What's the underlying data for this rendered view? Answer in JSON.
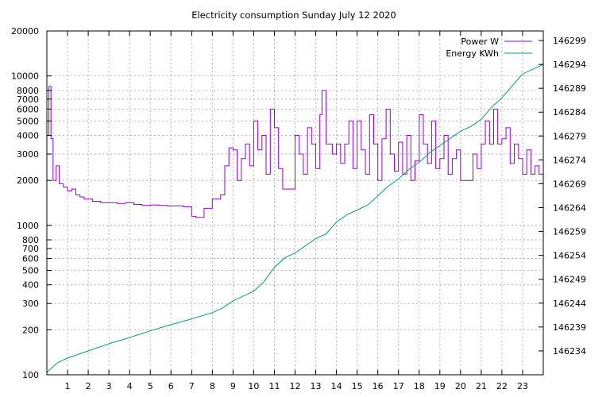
{
  "chart_data": {
    "type": "line",
    "title": "Electricity consumption Sunday July 12 2020",
    "xlabel": "",
    "ylabel": "",
    "y2label": "",
    "grid": true,
    "legend_position": "top-right",
    "x_range": [
      0,
      24
    ],
    "x_ticks": [
      1,
      2,
      3,
      4,
      5,
      6,
      7,
      8,
      9,
      10,
      11,
      12,
      13,
      14,
      15,
      16,
      17,
      18,
      19,
      20,
      21,
      22,
      23
    ],
    "y_scale": "log",
    "y_range": [
      100,
      20000
    ],
    "y_ticks": [
      100,
      200,
      300,
      400,
      500,
      600,
      700,
      800,
      1000,
      2000,
      3000,
      4000,
      5000,
      6000,
      7000,
      8000,
      10000,
      20000
    ],
    "y2_range": [
      146229,
      146301
    ],
    "y2_ticks": [
      146234,
      146239,
      146244,
      146249,
      146254,
      146259,
      146264,
      146269,
      146274,
      146279,
      146284,
      146289,
      146294,
      146299
    ],
    "series": [
      {
        "name": "Power W",
        "axis": "left",
        "color": "#9400d3",
        "step": true,
        "x": [
          0,
          0.1,
          0.2,
          0.3,
          0.45,
          0.6,
          0.8,
          1.0,
          1.2,
          1.4,
          1.6,
          1.8,
          2.2,
          2.6,
          3.0,
          3.4,
          3.8,
          4.2,
          4.6,
          5.0,
          5.4,
          5.8,
          6.2,
          6.6,
          7.0,
          7.2,
          7.6,
          8.0,
          8.4,
          8.6,
          8.8,
          9.0,
          9.2,
          9.4,
          9.6,
          9.8,
          10.0,
          10.2,
          10.4,
          10.6,
          10.8,
          11.0,
          11.2,
          11.4,
          11.6,
          11.8,
          12.0,
          12.2,
          12.4,
          12.6,
          12.8,
          13.0,
          13.2,
          13.3,
          13.5,
          13.8,
          14.0,
          14.2,
          14.4,
          14.6,
          14.8,
          15.0,
          15.2,
          15.4,
          15.6,
          15.8,
          16.0,
          16.2,
          16.4,
          16.6,
          16.8,
          17.0,
          17.2,
          17.4,
          17.6,
          17.8,
          18.0,
          18.2,
          18.4,
          18.6,
          18.8,
          19.0,
          19.2,
          19.4,
          19.6,
          19.8,
          20.0,
          20.2,
          20.4,
          20.6,
          20.8,
          21.0,
          21.2,
          21.4,
          21.6,
          21.8,
          22.0,
          22.2,
          22.4,
          22.6,
          22.8,
          23.0,
          23.2,
          23.4,
          23.6,
          23.8
        ],
        "values": [
          4000,
          8500,
          3800,
          2000,
          2500,
          1900,
          1800,
          1700,
          1750,
          1600,
          1550,
          1500,
          1450,
          1420,
          1420,
          1400,
          1420,
          1380,
          1360,
          1370,
          1360,
          1350,
          1350,
          1330,
          1150,
          1130,
          1300,
          1500,
          1600,
          2500,
          3300,
          3200,
          2000,
          2800,
          3500,
          2500,
          5000,
          3200,
          4000,
          2200,
          6000,
          4500,
          2400,
          1750,
          1750,
          1750,
          4000,
          3000,
          2200,
          4500,
          3500,
          2400,
          5500,
          8000,
          3500,
          3000,
          3500,
          2600,
          3500,
          5000,
          2400,
          5000,
          3200,
          2200,
          5500,
          3500,
          2000,
          3800,
          6000,
          3000,
          2300,
          3600,
          2200,
          4000,
          2000,
          2700,
          5500,
          3500,
          2600,
          5000,
          2400,
          2800,
          4000,
          2200,
          2800,
          3200,
          2000,
          2000,
          2000,
          3000,
          2400,
          3500,
          5000,
          3500,
          6000,
          3500,
          3800,
          4500,
          2600,
          3500,
          2800,
          2200,
          3200,
          2200,
          2500,
          2200
        ]
      },
      {
        "name": "Energy KWh",
        "axis": "right",
        "color": "#009e73",
        "step": false,
        "x": [
          0,
          0.5,
          1,
          2,
          3,
          4,
          5,
          6,
          7,
          8,
          8.5,
          9,
          9.5,
          10,
          10.5,
          11,
          11.5,
          12,
          12.5,
          13,
          13.5,
          14,
          14.5,
          15,
          15.5,
          16,
          16.5,
          17,
          17.5,
          18,
          18.5,
          19,
          19.5,
          20,
          20.5,
          21,
          21.5,
          22,
          22.5,
          23,
          23.5,
          24
        ],
        "values": [
          146229.5,
          146231.5,
          146232.5,
          146234.0,
          146235.5,
          146236.8,
          146238.2,
          146239.5,
          146240.7,
          146242.0,
          146243.0,
          146244.5,
          146245.5,
          146246.5,
          146248.5,
          146251.5,
          146253.5,
          146254.5,
          146256.0,
          146257.5,
          146258.5,
          146261.0,
          146262.5,
          146263.5,
          146264.5,
          146266.5,
          146268.5,
          146270.0,
          146272.0,
          146273.5,
          146275.5,
          146277.0,
          146278.5,
          146280.0,
          146281.0,
          146282.5,
          146285.0,
          146287.0,
          146289.5,
          146292.0,
          146293.0,
          146294.0
        ]
      }
    ]
  }
}
